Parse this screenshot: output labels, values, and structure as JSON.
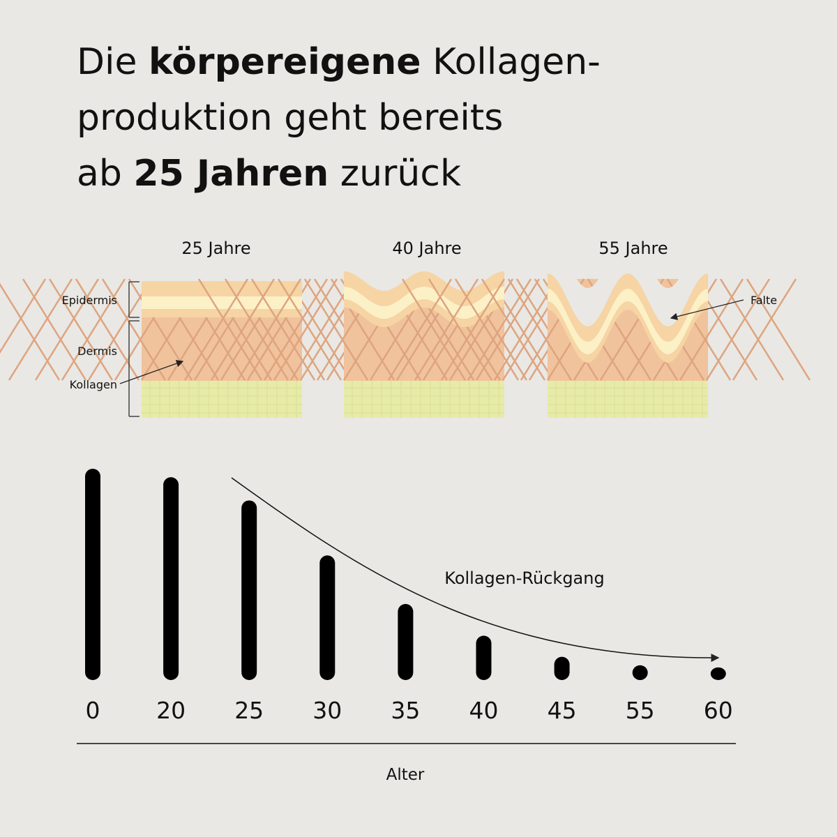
{
  "title_lines": [
    [
      {
        "text": "Die ",
        "bold": false
      },
      {
        "text": "körpereigene",
        "bold": true
      },
      {
        "text": " Kollagen-",
        "bold": false
      }
    ],
    [
      {
        "text": "produktion geht bereits",
        "bold": false
      }
    ],
    [
      {
        "text": "ab ",
        "bold": false
      },
      {
        "text": "25 Jahren",
        "bold": true
      },
      {
        "text": " zurück",
        "bold": false
      }
    ]
  ],
  "illustration": {
    "panels": [
      "25 Jahre",
      "40 Jahre",
      "55 Jahre"
    ],
    "layer_labels": [
      "Epidermis",
      "Dermis",
      "Kollagen"
    ],
    "wrinkle_label": "Falte"
  },
  "chart_data": {
    "type": "bar",
    "categories": [
      "0",
      "20",
      "25",
      "30",
      "35",
      "40",
      "45",
      "55",
      "60"
    ],
    "values": [
      100,
      96,
      85,
      59,
      36,
      21,
      11,
      7,
      6
    ],
    "ylim": [
      0,
      100
    ],
    "color": "#000000",
    "annotation": "Kollagen-Rückgang",
    "x_label": "Alter"
  }
}
